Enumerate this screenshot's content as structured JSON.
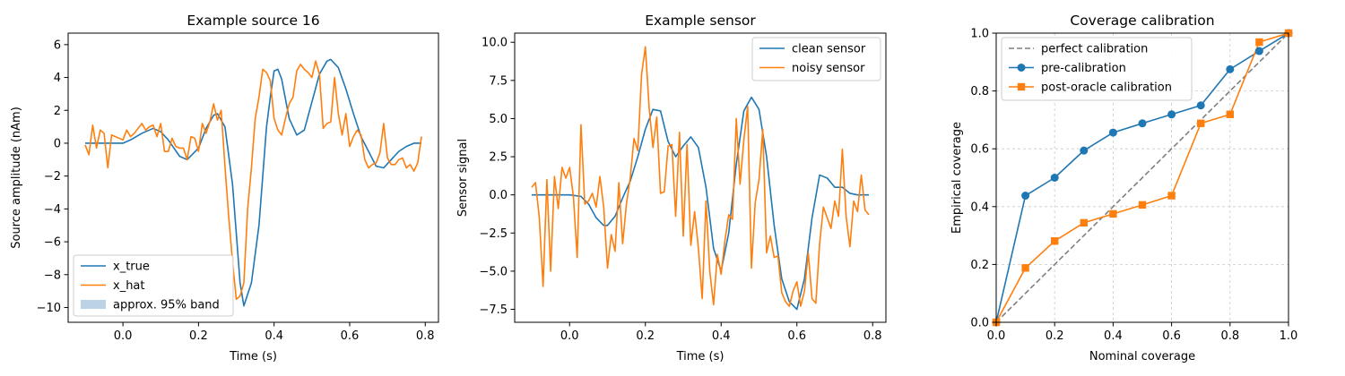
{
  "chart_data": [
    {
      "type": "line",
      "title": "Example source 16",
      "xlabel": "Time (s)",
      "ylabel": "Source amplitude (nAm)",
      "xlim": [
        -0.145,
        0.835
      ],
      "ylim": [
        -10.9,
        6.7
      ],
      "xticks": [
        0.0,
        0.2,
        0.4,
        0.6,
        0.8
      ],
      "xtick_labels": [
        "0.0",
        "0.2",
        "0.4",
        "0.6",
        "0.8"
      ],
      "yticks": [
        -10,
        -8,
        -6,
        -4,
        -2,
        0,
        2,
        4,
        6
      ],
      "ytick_labels": [
        "−10",
        "−8",
        "−6",
        "−4",
        "−2",
        "0",
        "2",
        "4",
        "6"
      ],
      "grid": false,
      "legend_position": "lower-left",
      "series": [
        {
          "name": "x_true",
          "color": "#1f77b4",
          "style": "line",
          "x": [
            -0.1,
            -0.05,
            0.0,
            0.02,
            0.05,
            0.08,
            0.1,
            0.12,
            0.15,
            0.17,
            0.2,
            0.22,
            0.24,
            0.25,
            0.27,
            0.29,
            0.3,
            0.31,
            0.32,
            0.34,
            0.36,
            0.38,
            0.39,
            0.4,
            0.41,
            0.42,
            0.44,
            0.46,
            0.48,
            0.5,
            0.52,
            0.54,
            0.55,
            0.57,
            0.59,
            0.61,
            0.63,
            0.65,
            0.67,
            0.69,
            0.71,
            0.73,
            0.75,
            0.77,
            0.79
          ],
          "y": [
            0.0,
            0.0,
            0.0,
            0.2,
            0.6,
            0.9,
            0.7,
            0.2,
            -0.8,
            -1.0,
            -0.3,
            0.9,
            1.7,
            1.8,
            1.0,
            -2.5,
            -5.5,
            -8.5,
            -9.9,
            -8.5,
            -5.0,
            1.0,
            2.8,
            4.4,
            4.5,
            3.9,
            1.5,
            0.5,
            0.8,
            2.5,
            4.2,
            5.0,
            5.1,
            4.6,
            3.3,
            1.8,
            0.4,
            -0.5,
            -1.4,
            -1.5,
            -1.0,
            -0.5,
            -0.2,
            0.0,
            0.0
          ]
        },
        {
          "name": "x_hat",
          "color": "#ff7f0e",
          "style": "line",
          "x": [
            -0.1,
            -0.09,
            -0.08,
            -0.07,
            -0.06,
            -0.05,
            -0.04,
            -0.03,
            -0.02,
            -0.01,
            0.0,
            0.01,
            0.02,
            0.03,
            0.04,
            0.05,
            0.06,
            0.07,
            0.08,
            0.09,
            0.1,
            0.11,
            0.12,
            0.13,
            0.14,
            0.15,
            0.16,
            0.17,
            0.18,
            0.19,
            0.2,
            0.21,
            0.22,
            0.23,
            0.24,
            0.25,
            0.26,
            0.27,
            0.28,
            0.29,
            0.3,
            0.31,
            0.32,
            0.33,
            0.34,
            0.35,
            0.36,
            0.37,
            0.38,
            0.39,
            0.4,
            0.41,
            0.42,
            0.43,
            0.44,
            0.45,
            0.46,
            0.47,
            0.48,
            0.49,
            0.5,
            0.51,
            0.52,
            0.53,
            0.54,
            0.55,
            0.56,
            0.57,
            0.58,
            0.59,
            0.6,
            0.61,
            0.62,
            0.63,
            0.64,
            0.65,
            0.66,
            0.67,
            0.68,
            0.69,
            0.7,
            0.71,
            0.72,
            0.73,
            0.74,
            0.75,
            0.76,
            0.77,
            0.78,
            0.79
          ],
          "y": [
            -0.1,
            -0.7,
            1.1,
            -0.3,
            0.8,
            0.6,
            -1.5,
            0.5,
            0.4,
            0.3,
            0.2,
            0.8,
            0.4,
            0.6,
            0.9,
            1.2,
            0.8,
            1.0,
            1.1,
            0.4,
            1.2,
            -0.5,
            -0.5,
            0.3,
            -0.2,
            -0.3,
            -0.3,
            -1.0,
            0.4,
            0.3,
            -0.5,
            1.2,
            0.6,
            1.3,
            2.4,
            1.4,
            2.0,
            -1.4,
            -4.5,
            -7.2,
            -9.5,
            -9.3,
            -8.5,
            -4.0,
            -1.5,
            1.5,
            2.8,
            4.5,
            4.3,
            3.8,
            1.5,
            0.8,
            0.5,
            1.5,
            2.4,
            2.8,
            4.4,
            4.8,
            4.5,
            4.3,
            4.0,
            5.0,
            4.2,
            0.9,
            1.2,
            1.3,
            4.0,
            1.8,
            0.5,
            1.8,
            -0.2,
            0.4,
            0.8,
            0.5,
            -1.0,
            -1.5,
            -1.3,
            -1.2,
            -0.6,
            1.2,
            -0.9,
            -1.3,
            -1.3,
            -1.0,
            -0.9,
            -1.5,
            -1.3,
            -1.7,
            -1.2,
            0.4
          ]
        }
      ],
      "band": {
        "name": "approx. 95% band",
        "color": "#bcd3e6"
      }
    },
    {
      "type": "line",
      "title": "Example sensor",
      "xlabel": "Time (s)",
      "ylabel": "Sensor signal",
      "xlim": [
        -0.145,
        0.835
      ],
      "ylim": [
        -8.35,
        10.6
      ],
      "xticks": [
        0.0,
        0.2,
        0.4,
        0.6,
        0.8
      ],
      "xtick_labels": [
        "0.0",
        "0.2",
        "0.4",
        "0.6",
        "0.8"
      ],
      "yticks": [
        -7.5,
        -5.0,
        -2.5,
        0.0,
        2.5,
        5.0,
        7.5,
        10.0
      ],
      "ytick_labels": [
        "−7.5",
        "−5.0",
        "−2.5",
        "0.0",
        "2.5",
        "5.0",
        "7.5",
        "10.0"
      ],
      "grid": false,
      "legend_position": "upper-right",
      "series": [
        {
          "name": "clean sensor",
          "color": "#1f77b4",
          "style": "line",
          "x": [
            -0.1,
            -0.05,
            0.0,
            0.03,
            0.05,
            0.07,
            0.09,
            0.1,
            0.12,
            0.14,
            0.16,
            0.18,
            0.2,
            0.22,
            0.24,
            0.26,
            0.28,
            0.3,
            0.32,
            0.34,
            0.36,
            0.38,
            0.4,
            0.42,
            0.44,
            0.46,
            0.48,
            0.5,
            0.52,
            0.54,
            0.56,
            0.58,
            0.6,
            0.62,
            0.64,
            0.66,
            0.68,
            0.7,
            0.72,
            0.74,
            0.76,
            0.79
          ],
          "y": [
            0.0,
            0.0,
            0.0,
            -0.1,
            -0.6,
            -1.5,
            -2.0,
            -2.0,
            -1.4,
            -0.2,
            0.9,
            2.5,
            4.3,
            5.6,
            5.5,
            3.5,
            2.5,
            3.2,
            3.8,
            3.1,
            0.5,
            -3.5,
            -5.0,
            -2.5,
            2.0,
            5.5,
            6.4,
            5.6,
            2.5,
            -2.0,
            -5.5,
            -7.0,
            -7.5,
            -5.5,
            -1.5,
            1.3,
            1.1,
            0.5,
            0.5,
            0.1,
            0.0,
            0.0
          ]
        },
        {
          "name": "noisy sensor",
          "color": "#ff7f0e",
          "style": "line",
          "x": [
            -0.1,
            -0.09,
            -0.08,
            -0.07,
            -0.06,
            -0.05,
            -0.04,
            -0.03,
            -0.02,
            -0.01,
            0.0,
            0.01,
            0.02,
            0.03,
            0.04,
            0.05,
            0.06,
            0.07,
            0.08,
            0.09,
            0.1,
            0.11,
            0.12,
            0.13,
            0.14,
            0.15,
            0.16,
            0.17,
            0.18,
            0.19,
            0.2,
            0.21,
            0.22,
            0.23,
            0.24,
            0.25,
            0.26,
            0.27,
            0.28,
            0.29,
            0.3,
            0.31,
            0.32,
            0.33,
            0.34,
            0.35,
            0.36,
            0.37,
            0.38,
            0.39,
            0.4,
            0.41,
            0.42,
            0.43,
            0.44,
            0.45,
            0.46,
            0.47,
            0.48,
            0.49,
            0.5,
            0.51,
            0.52,
            0.53,
            0.54,
            0.55,
            0.56,
            0.57,
            0.58,
            0.59,
            0.6,
            0.61,
            0.62,
            0.63,
            0.64,
            0.65,
            0.66,
            0.67,
            0.68,
            0.69,
            0.7,
            0.71,
            0.72,
            0.73,
            0.74,
            0.75,
            0.76,
            0.77,
            0.78,
            0.79
          ],
          "y": [
            0.5,
            0.8,
            -1.5,
            -6.0,
            1.0,
            -5.0,
            1.2,
            -0.9,
            1.8,
            1.1,
            1.8,
            -0.1,
            -4.1,
            4.6,
            -0.6,
            -0.4,
            0.1,
            -0.8,
            1.2,
            -0.8,
            -4.8,
            -2.6,
            -3.7,
            0.8,
            -3.2,
            -0.6,
            1.1,
            3.7,
            2.9,
            7.9,
            9.7,
            5.7,
            3.1,
            5.1,
            0.1,
            0.2,
            3.2,
            3.3,
            -1.4,
            4.1,
            -2.7,
            3.3,
            -3.3,
            -1.1,
            -3.5,
            -6.8,
            -0.4,
            -5.0,
            -7.2,
            -3.9,
            -5.2,
            -3.0,
            -1.3,
            -1.6,
            5.0,
            0.7,
            3.6,
            5.8,
            -4.8,
            -0.5,
            1.0,
            4.3,
            -3.8,
            -2.7,
            -4.1,
            -4.0,
            -6.4,
            -7.0,
            -7.3,
            -6.3,
            -5.7,
            -7.3,
            -6.3,
            -3.8,
            -6.8,
            -7.1,
            -3.2,
            -0.8,
            -1.5,
            -2.2,
            -0.4,
            -1.4,
            3.0,
            -1.4,
            -3.4,
            -0.4,
            -1.1,
            1.3,
            -1.0,
            -1.3
          ]
        }
      ]
    },
    {
      "type": "line",
      "title": "Coverage calibration",
      "xlabel": "Nominal coverage",
      "ylabel": "Empirical coverage",
      "xlim": [
        0.0,
        1.0
      ],
      "ylim": [
        0.0,
        1.0
      ],
      "xticks": [
        0.0,
        0.2,
        0.4,
        0.6,
        0.8,
        1.0
      ],
      "xtick_labels": [
        "0.0",
        "0.2",
        "0.4",
        "0.6",
        "0.8",
        "1.0"
      ],
      "yticks": [
        0.0,
        0.2,
        0.4,
        0.6,
        0.8,
        1.0
      ],
      "ytick_labels": [
        "0.0",
        "0.2",
        "0.4",
        "0.6",
        "0.8",
        "1.0"
      ],
      "grid": true,
      "legend_position": "upper-left",
      "series": [
        {
          "name": "perfect calibration",
          "color": "#7f7f7f",
          "style": "dashed",
          "x": [
            0.0,
            1.0
          ],
          "y": [
            0.0,
            1.0
          ]
        },
        {
          "name": "pre-calibration",
          "color": "#1f77b4",
          "style": "line",
          "marker": "circle",
          "x": [
            0.0,
            0.1,
            0.2,
            0.3,
            0.4,
            0.5,
            0.6,
            0.7,
            0.8,
            0.9,
            1.0
          ],
          "y": [
            0.0,
            0.438,
            0.5,
            0.594,
            0.656,
            0.688,
            0.719,
            0.75,
            0.875,
            0.938,
            1.0
          ]
        },
        {
          "name": "post-oracle calibration",
          "color": "#ff7f0e",
          "style": "line",
          "marker": "square",
          "x": [
            0.0,
            0.1,
            0.2,
            0.3,
            0.4,
            0.5,
            0.6,
            0.7,
            0.8,
            0.9,
            1.0
          ],
          "y": [
            0.0,
            0.188,
            0.281,
            0.344,
            0.375,
            0.406,
            0.438,
            0.688,
            0.719,
            0.969,
            1.0
          ]
        }
      ]
    }
  ]
}
